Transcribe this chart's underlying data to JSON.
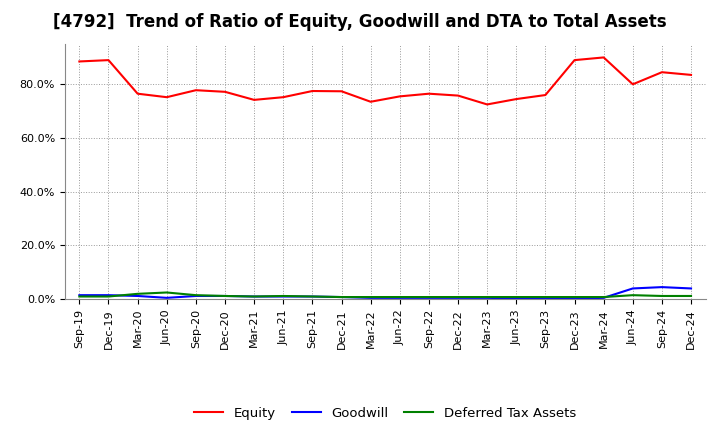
{
  "title": "[4792]  Trend of Ratio of Equity, Goodwill and DTA to Total Assets",
  "x_labels": [
    "Sep-19",
    "Dec-19",
    "Mar-20",
    "Jun-20",
    "Sep-20",
    "Dec-20",
    "Mar-21",
    "Jun-21",
    "Sep-21",
    "Dec-21",
    "Mar-22",
    "Jun-22",
    "Sep-22",
    "Dec-22",
    "Mar-23",
    "Jun-23",
    "Sep-23",
    "Dec-23",
    "Mar-24",
    "Jun-24",
    "Sep-24",
    "Dec-24"
  ],
  "equity": [
    88.5,
    89.0,
    76.5,
    75.2,
    77.8,
    77.2,
    74.2,
    75.2,
    77.5,
    77.4,
    73.5,
    75.5,
    76.5,
    75.8,
    72.5,
    74.5,
    76.0,
    89.0,
    90.0,
    80.0,
    84.5,
    83.5
  ],
  "goodwill": [
    1.5,
    1.5,
    1.2,
    0.5,
    1.2,
    1.2,
    1.0,
    1.0,
    1.0,
    0.8,
    0.5,
    0.5,
    0.5,
    0.5,
    0.5,
    0.3,
    0.3,
    0.3,
    0.5,
    4.0,
    4.5,
    4.0
  ],
  "dta": [
    1.0,
    1.0,
    2.0,
    2.5,
    1.5,
    1.2,
    1.0,
    1.2,
    1.0,
    0.8,
    0.8,
    0.8,
    0.8,
    0.8,
    0.8,
    0.8,
    0.8,
    0.8,
    0.8,
    1.5,
    1.2,
    1.2
  ],
  "equity_color": "#FF0000",
  "goodwill_color": "#0000FF",
  "dta_color": "#008000",
  "ylim": [
    0,
    95
  ],
  "yticks": [
    0,
    20,
    40,
    60,
    80
  ],
  "ytick_labels": [
    "0.0%",
    "20.0%",
    "40.0%",
    "60.0%",
    "80.0%"
  ],
  "legend_labels": [
    "Equity",
    "Goodwill",
    "Deferred Tax Assets"
  ],
  "background_color": "#FFFFFF",
  "plot_bg_color": "#FFFFFF",
  "grid_color": "#999999",
  "title_fontsize": 12,
  "tick_fontsize": 8,
  "legend_fontsize": 9.5
}
